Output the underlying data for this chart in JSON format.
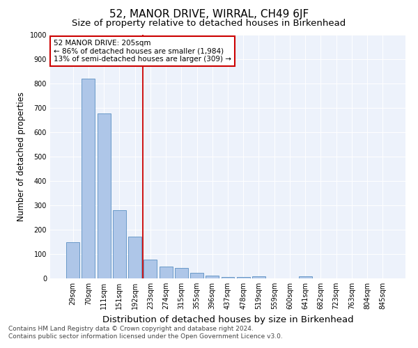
{
  "title": "52, MANOR DRIVE, WIRRAL, CH49 6JF",
  "subtitle": "Size of property relative to detached houses in Birkenhead",
  "xlabel": "Distribution of detached houses by size in Birkenhead",
  "ylabel": "Number of detached properties",
  "categories": [
    "29sqm",
    "70sqm",
    "111sqm",
    "151sqm",
    "192sqm",
    "233sqm",
    "274sqm",
    "315sqm",
    "355sqm",
    "396sqm",
    "437sqm",
    "478sqm",
    "519sqm",
    "559sqm",
    "600sqm",
    "641sqm",
    "682sqm",
    "723sqm",
    "763sqm",
    "804sqm",
    "845sqm"
  ],
  "values": [
    148,
    820,
    678,
    280,
    172,
    78,
    50,
    42,
    22,
    12,
    6,
    6,
    8,
    0,
    0,
    9,
    0,
    0,
    0,
    0,
    0
  ],
  "bar_color": "#aec6e8",
  "bar_edge_color": "#5a8fc2",
  "vline_x": 4.5,
  "vline_color": "#cc0000",
  "annotation_text": "52 MANOR DRIVE: 205sqm\n← 86% of detached houses are smaller (1,984)\n13% of semi-detached houses are larger (309) →",
  "annotation_box_color": "#ffffff",
  "annotation_box_edge_color": "#cc0000",
  "ylim": [
    0,
    1000
  ],
  "yticks": [
    0,
    100,
    200,
    300,
    400,
    500,
    600,
    700,
    800,
    900,
    1000
  ],
  "background_color": "#edf2fb",
  "footer_text": "Contains HM Land Registry data © Crown copyright and database right 2024.\nContains public sector information licensed under the Open Government Licence v3.0.",
  "title_fontsize": 11,
  "subtitle_fontsize": 9.5,
  "xlabel_fontsize": 9.5,
  "ylabel_fontsize": 8.5,
  "tick_fontsize": 7,
  "footer_fontsize": 6.5,
  "annotation_fontsize": 7.5
}
